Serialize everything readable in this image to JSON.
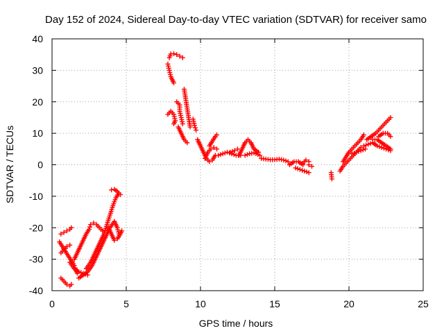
{
  "chart_data": {
    "type": "scatter",
    "title": "Day 152 of 2024, Sidereal Day-to-day VTEC variation (SDTVAR) for receiver samo",
    "xlabel": "GPS time / hours",
    "ylabel": "SDTVAR / TECUs",
    "xlim": [
      0,
      25
    ],
    "ylim": [
      -40,
      40
    ],
    "xticks": [
      0,
      5,
      10,
      15,
      20,
      25
    ],
    "yticks": [
      -40,
      -30,
      -20,
      -10,
      0,
      10,
      20,
      30,
      40
    ],
    "xtick_labels": [
      "0",
      "5",
      "10",
      "15",
      "20",
      "25"
    ],
    "ytick_labels": [
      "-40",
      "-30",
      "-20",
      "-10",
      "0",
      "10",
      "20",
      "30",
      "40"
    ],
    "grid": true,
    "marker": "+",
    "color": "#ff0000",
    "series": [
      {
        "name": "SDTVAR",
        "segments": [
          [
            [
              0.6,
              -22
            ],
            [
              0.8,
              -21.5
            ],
            [
              1.0,
              -21
            ],
            [
              1.2,
              -20.5
            ],
            [
              1.3,
              -20
            ]
          ],
          [
            [
              0.5,
              -24.5
            ],
            [
              0.7,
              -26
            ],
            [
              0.9,
              -27.5
            ],
            [
              1.1,
              -29
            ],
            [
              1.3,
              -30.5
            ],
            [
              1.5,
              -32
            ],
            [
              1.6,
              -33.5
            ],
            [
              1.7,
              -34.5
            ]
          ],
          [
            [
              0.6,
              -28
            ],
            [
              0.8,
              -27
            ],
            [
              1.0,
              -26
            ],
            [
              1.2,
              -25.5
            ]
          ],
          [
            [
              0.6,
              -36
            ],
            [
              0.8,
              -37
            ],
            [
              1.0,
              -38
            ],
            [
              1.2,
              -38.5
            ],
            [
              1.3,
              -38
            ]
          ],
          [
            [
              1.2,
              -31
            ],
            [
              1.5,
              -33
            ],
            [
              1.8,
              -34
            ],
            [
              2.1,
              -34.5
            ],
            [
              2.4,
              -35
            ]
          ],
          [
            [
              1.5,
              -30
            ],
            [
              1.7,
              -28
            ],
            [
              1.9,
              -26
            ],
            [
              2.1,
              -24
            ],
            [
              2.3,
              -22
            ],
            [
              2.5,
              -20.5
            ],
            [
              2.6,
              -19
            ],
            [
              2.8,
              -18.5
            ],
            [
              3.0,
              -19
            ],
            [
              3.2,
              -20
            ],
            [
              3.4,
              -21
            ]
          ],
          [
            [
              1.8,
              -36
            ],
            [
              2.1,
              -35
            ],
            [
              2.4,
              -34
            ],
            [
              2.7,
              -32
            ],
            [
              3.0,
              -29
            ],
            [
              3.3,
              -26
            ],
            [
              3.6,
              -23
            ],
            [
              3.9,
              -20
            ],
            [
              4.2,
              -18
            ],
            [
              4.4,
              -20
            ],
            [
              4.5,
              -22
            ]
          ],
          [
            [
              2.3,
              -33
            ],
            [
              2.6,
              -31
            ],
            [
              2.9,
              -28
            ],
            [
              3.2,
              -25
            ],
            [
              3.5,
              -22
            ],
            [
              3.7,
              -19
            ],
            [
              3.9,
              -16
            ],
            [
              4.1,
              -13
            ],
            [
              4.3,
              -10.5
            ],
            [
              4.5,
              -9
            ]
          ],
          [
            [
              3.8,
              -20
            ],
            [
              4.0,
              -22
            ],
            [
              4.2,
              -24
            ],
            [
              4.4,
              -23.5
            ],
            [
              4.6,
              -22
            ],
            [
              4.7,
              -21
            ]
          ],
          [
            [
              4.0,
              -8
            ],
            [
              4.2,
              -7.8
            ],
            [
              4.4,
              -8.5
            ],
            [
              4.6,
              -9.5
            ]
          ],
          [
            [
              7.8,
              32
            ],
            [
              7.9,
              30
            ],
            [
              8.0,
              28
            ],
            [
              8.2,
              26
            ]
          ],
          [
            [
              7.9,
              34
            ],
            [
              8.0,
              35.2
            ],
            [
              8.2,
              35.3
            ],
            [
              8.4,
              35
            ],
            [
              8.6,
              34.5
            ],
            [
              8.8,
              34
            ]
          ],
          [
            [
              7.8,
              16
            ],
            [
              8.0,
              17
            ],
            [
              8.2,
              16
            ],
            [
              8.3,
              14
            ],
            [
              8.2,
              13
            ]
          ],
          [
            [
              8.4,
              20
            ],
            [
              8.6,
              19
            ],
            [
              8.6,
              17
            ],
            [
              8.7,
              15
            ],
            [
              8.8,
              13
            ]
          ],
          [
            [
              8.9,
              24
            ],
            [
              9.0,
              21
            ],
            [
              9.1,
              18
            ],
            [
              9.2,
              15
            ],
            [
              9.3,
              12
            ]
          ],
          [
            [
              8.5,
              12
            ],
            [
              8.7,
              10
            ],
            [
              8.9,
              8
            ],
            [
              9.1,
              7
            ]
          ],
          [
            [
              9.5,
              14.5
            ],
            [
              9.6,
              12.5
            ],
            [
              9.7,
              11
            ]
          ],
          [
            [
              9.8,
              8
            ],
            [
              10.0,
              6
            ],
            [
              10.2,
              4
            ],
            [
              10.4,
              2
            ],
            [
              10.6,
              1
            ],
            [
              10.8,
              1.5
            ],
            [
              11.0,
              3
            ]
          ],
          [
            [
              10.6,
              6
            ],
            [
              10.8,
              7.5
            ],
            [
              11.0,
              9
            ],
            [
              11.1,
              9.5
            ]
          ],
          [
            [
              10.3,
              2
            ],
            [
              10.5,
              4
            ],
            [
              10.7,
              5
            ],
            [
              10.9,
              5.5
            ],
            [
              11.1,
              5
            ]
          ],
          [
            [
              11.2,
              3
            ],
            [
              11.5,
              3.5
            ],
            [
              11.8,
              4
            ],
            [
              12.1,
              3.5
            ],
            [
              12.4,
              3
            ],
            [
              12.7,
              3
            ]
          ],
          [
            [
              12.0,
              4
            ],
            [
              12.3,
              4.5
            ],
            [
              12.5,
              5
            ]
          ],
          [
            [
              12.6,
              3
            ],
            [
              12.8,
              5
            ],
            [
              13.0,
              7
            ],
            [
              13.2,
              8
            ],
            [
              13.4,
              7
            ],
            [
              13.6,
              5
            ],
            [
              13.9,
              4
            ]
          ],
          [
            [
              13.0,
              3
            ],
            [
              13.3,
              3.5
            ],
            [
              13.6,
              3.8
            ],
            [
              14.0,
              3
            ]
          ],
          [
            [
              14.1,
              2
            ],
            [
              14.4,
              1.8
            ],
            [
              14.7,
              1.6
            ],
            [
              15.0,
              1.6
            ],
            [
              15.3,
              1.8
            ],
            [
              15.6,
              1.5
            ],
            [
              15.9,
              1
            ]
          ],
          [
            [
              16.0,
              0
            ],
            [
              16.3,
              1
            ],
            [
              16.6,
              1
            ],
            [
              16.9,
              0
            ]
          ],
          [
            [
              16.4,
              -1
            ],
            [
              16.7,
              -1.5
            ],
            [
              17.0,
              -2
            ],
            [
              17.3,
              -2.5
            ]
          ],
          [
            [
              16.9,
              0.5
            ],
            [
              17.1,
              1.5
            ],
            [
              17.3,
              1
            ]
          ],
          [
            [
              17.3,
              0
            ],
            [
              17.5,
              -0.5
            ]
          ],
          [
            [
              18.8,
              -2.5
            ],
            [
              18.85,
              -4.5
            ]
          ],
          [
            [
              19.4,
              -2
            ],
            [
              19.6,
              -0.5
            ],
            [
              19.8,
              0.5
            ],
            [
              20.0,
              1.5
            ],
            [
              20.2,
              2.5
            ],
            [
              20.4,
              3.5
            ],
            [
              20.6,
              4.5
            ],
            [
              20.8,
              5.5
            ]
          ],
          [
            [
              19.6,
              1
            ],
            [
              19.8,
              2.5
            ],
            [
              20.0,
              4
            ],
            [
              20.2,
              5
            ],
            [
              20.4,
              6
            ],
            [
              20.6,
              7
            ],
            [
              20.8,
              8
            ],
            [
              21.0,
              9.5
            ]
          ],
          [
            [
              20.2,
              3.5
            ],
            [
              20.5,
              4
            ],
            [
              20.8,
              4.5
            ],
            [
              21.1,
              5
            ]
          ],
          [
            [
              21.0,
              6
            ],
            [
              21.3,
              6.5
            ],
            [
              21.6,
              7
            ],
            [
              21.9,
              6
            ],
            [
              22.2,
              5.5
            ],
            [
              22.5,
              5
            ],
            [
              22.8,
              4.5
            ]
          ],
          [
            [
              21.2,
              8
            ],
            [
              21.5,
              9
            ],
            [
              21.8,
              10
            ],
            [
              22.0,
              11
            ],
            [
              22.3,
              12.5
            ],
            [
              22.6,
              14
            ],
            [
              22.8,
              15
            ]
          ],
          [
            [
              22.0,
              9
            ],
            [
              22.3,
              10
            ],
            [
              22.6,
              10
            ],
            [
              22.8,
              9
            ]
          ],
          [
            [
              21.6,
              8
            ],
            [
              21.9,
              8
            ],
            [
              22.2,
              7
            ],
            [
              22.5,
              6
            ],
            [
              22.8,
              5
            ]
          ]
        ]
      }
    ]
  }
}
